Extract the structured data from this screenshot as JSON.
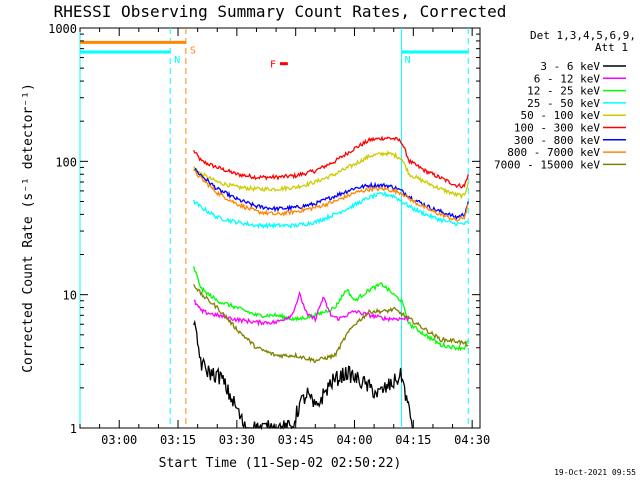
{
  "chart_data": {
    "type": "line",
    "title": "RHESSI Observing Summary Count Rates, Corrected",
    "xlabel": "Start Time (11-Sep-02 02:50:22)",
    "ylabel": "Corrected Count Rate (s⁻¹ detector⁻¹)",
    "timestamp": "19-Oct-2021 09:55",
    "x_axis": {
      "range_minutes_after_0300": [
        -10,
        92
      ],
      "ticks": [
        {
          "label": "03:00",
          "minutes": 0
        },
        {
          "label": "03:15",
          "minutes": 15
        },
        {
          "label": "03:30",
          "minutes": 30
        },
        {
          "label": "03:45",
          "minutes": 45
        },
        {
          "label": "04:00",
          "minutes": 60
        },
        {
          "label": "04:15",
          "minutes": 75
        },
        {
          "label": "04:30",
          "minutes": 90
        }
      ]
    },
    "y_axis": {
      "scale": "log",
      "ylim": [
        1,
        1000
      ],
      "ticks": [
        {
          "label": "1",
          "value": 1
        },
        {
          "label": "10",
          "value": 10
        },
        {
          "label": "100",
          "value": 100
        },
        {
          "label": "1000",
          "value": 1000
        }
      ]
    },
    "legend": {
      "placement": "top-right",
      "header": [
        "Det 1,3,4,5,6,9,",
        "Att 1"
      ],
      "entries": [
        {
          "label": "3 - 6 keV",
          "color": "#000000"
        },
        {
          "label": "6 - 12 keV",
          "color": "#ff00ff"
        },
        {
          "label": "12 - 25 keV",
          "color": "#00ff00"
        },
        {
          "label": "25 - 50 keV",
          "color": "#00ffff"
        },
        {
          "label": "50 - 100 keV",
          "color": "#cccc00"
        },
        {
          "label": "100 - 300 keV",
          "color": "#ff0000"
        },
        {
          "label": "300 - 800 keV",
          "color": "#0000ff"
        },
        {
          "label": "800 - 7000 keV",
          "color": "#ff8800"
        },
        {
          "label": "7000 - 15000 keV",
          "color": "#808000"
        }
      ]
    },
    "state_bars": [
      {
        "label": "S",
        "color": "#ff8800",
        "start": -10,
        "end": 17,
        "value": 780
      },
      {
        "label": "N",
        "color": "#00ffff",
        "start": -10,
        "end": 13,
        "value": 660
      },
      {
        "label": "N",
        "color": "#00ffff",
        "start": 72,
        "end": 89,
        "value": 660
      },
      {
        "label": "F",
        "color": "#ff0000",
        "start": 41,
        "end": 43,
        "value": 540
      }
    ],
    "vertical_markers": [
      {
        "color": "#00ffff",
        "minutes": -10,
        "style": "solid"
      },
      {
        "color": "#00ffff",
        "minutes": 13,
        "style": "dashed"
      },
      {
        "color": "#ff8800",
        "minutes": 17,
        "style": "dashed"
      },
      {
        "color": "#00ffff",
        "minutes": 72,
        "style": "solid"
      },
      {
        "color": "#00ffff",
        "minutes": 89,
        "style": "dashed"
      }
    ],
    "series": [
      {
        "name": "100 - 300 keV",
        "color": "#ff0000",
        "points": [
          [
            19,
            120
          ],
          [
            21,
            100
          ],
          [
            25,
            90
          ],
          [
            30,
            80
          ],
          [
            35,
            76
          ],
          [
            40,
            76
          ],
          [
            45,
            78
          ],
          [
            50,
            85
          ],
          [
            55,
            100
          ],
          [
            60,
            125
          ],
          [
            64,
            145
          ],
          [
            68,
            150
          ],
          [
            70,
            148
          ],
          [
            71,
            145
          ],
          [
            72,
            140
          ],
          [
            74,
            100
          ],
          [
            78,
            85
          ],
          [
            82,
            75
          ],
          [
            86,
            66
          ],
          [
            88,
            65
          ],
          [
            89,
            80
          ]
        ]
      },
      {
        "name": "50 - 100 keV",
        "color": "#cccc00",
        "points": [
          [
            19,
            90
          ],
          [
            21,
            80
          ],
          [
            25,
            70
          ],
          [
            30,
            64
          ],
          [
            35,
            62
          ],
          [
            40,
            62
          ],
          [
            45,
            64
          ],
          [
            50,
            70
          ],
          [
            55,
            80
          ],
          [
            60,
            95
          ],
          [
            64,
            110
          ],
          [
            68,
            115
          ],
          [
            70,
            112
          ],
          [
            72,
            105
          ],
          [
            74,
            80
          ],
          [
            78,
            70
          ],
          [
            82,
            62
          ],
          [
            86,
            56
          ],
          [
            88,
            55
          ],
          [
            89,
            70
          ]
        ]
      },
      {
        "name": "300 - 800 keV",
        "color": "#0000ff",
        "points": [
          [
            19,
            88
          ],
          [
            21,
            78
          ],
          [
            25,
            62
          ],
          [
            30,
            52
          ],
          [
            35,
            46
          ],
          [
            40,
            44
          ],
          [
            45,
            45
          ],
          [
            50,
            48
          ],
          [
            55,
            55
          ],
          [
            60,
            63
          ],
          [
            64,
            66
          ],
          [
            68,
            66
          ],
          [
            70,
            64
          ],
          [
            72,
            60
          ],
          [
            75,
            52
          ],
          [
            80,
            44
          ],
          [
            84,
            40
          ],
          [
            86,
            38
          ],
          [
            88,
            40
          ],
          [
            89,
            50
          ]
        ]
      },
      {
        "name": "800 - 7000 keV",
        "color": "#ff8800",
        "points": [
          [
            19,
            85
          ],
          [
            21,
            74
          ],
          [
            25,
            58
          ],
          [
            30,
            48
          ],
          [
            35,
            42
          ],
          [
            40,
            40
          ],
          [
            45,
            42
          ],
          [
            50,
            45
          ],
          [
            55,
            50
          ],
          [
            60,
            58
          ],
          [
            64,
            62
          ],
          [
            68,
            62
          ],
          [
            70,
            60
          ],
          [
            72,
            58
          ],
          [
            75,
            50
          ],
          [
            80,
            42
          ],
          [
            84,
            38
          ],
          [
            86,
            36
          ],
          [
            88,
            38
          ],
          [
            89,
            48
          ]
        ]
      },
      {
        "name": "25 - 50 keV",
        "color": "#00ffff",
        "points": [
          [
            19,
            50
          ],
          [
            21,
            45
          ],
          [
            25,
            38
          ],
          [
            30,
            35
          ],
          [
            35,
            33
          ],
          [
            40,
            33
          ],
          [
            45,
            33
          ],
          [
            50,
            35
          ],
          [
            55,
            40
          ],
          [
            60,
            47
          ],
          [
            64,
            54
          ],
          [
            67,
            57
          ],
          [
            70,
            55
          ],
          [
            72,
            50
          ],
          [
            75,
            44
          ],
          [
            80,
            38
          ],
          [
            84,
            35
          ],
          [
            86,
            34
          ],
          [
            88,
            34
          ],
          [
            89,
            35
          ]
        ]
      },
      {
        "name": "12 - 25 keV",
        "color": "#00ff00",
        "points": [
          [
            19,
            16
          ],
          [
            21,
            11
          ],
          [
            25,
            9
          ],
          [
            30,
            8
          ],
          [
            35,
            7
          ],
          [
            40,
            7
          ],
          [
            45,
            6.5
          ],
          [
            50,
            7
          ],
          [
            55,
            8
          ],
          [
            58,
            11
          ],
          [
            60,
            9
          ],
          [
            64,
            11
          ],
          [
            67,
            12
          ],
          [
            70,
            10
          ],
          [
            72,
            9
          ],
          [
            74,
            6
          ],
          [
            78,
            5
          ],
          [
            82,
            4.2
          ],
          [
            86,
            4
          ],
          [
            88,
            4
          ],
          [
            89,
            4.5
          ]
        ]
      },
      {
        "name": "6 - 12 keV",
        "color": "#ff00ff",
        "points": [
          [
            19,
            9
          ],
          [
            21,
            7.5
          ],
          [
            25,
            7
          ],
          [
            30,
            6.5
          ],
          [
            35,
            6.2
          ],
          [
            40,
            6.2
          ],
          [
            44,
            7
          ],
          [
            46,
            10
          ],
          [
            48,
            7
          ],
          [
            50,
            6.6
          ],
          [
            52,
            9.5
          ],
          [
            54,
            7
          ],
          [
            56,
            6.6
          ],
          [
            60,
            7.5
          ],
          [
            64,
            7
          ],
          [
            68,
            6.6
          ],
          [
            72,
            6.6
          ],
          [
            74,
            6.6
          ]
        ]
      },
      {
        "name": "7000 - 15000 keV",
        "color": "#808000",
        "points": [
          [
            19,
            12
          ],
          [
            21,
            10
          ],
          [
            25,
            8
          ],
          [
            30,
            5.5
          ],
          [
            35,
            4
          ],
          [
            40,
            3.5
          ],
          [
            45,
            3.5
          ],
          [
            50,
            3.2
          ],
          [
            55,
            3.5
          ],
          [
            58,
            5
          ],
          [
            60,
            6
          ],
          [
            64,
            7.5
          ],
          [
            68,
            7.5
          ],
          [
            70,
            7.8
          ],
          [
            72,
            7.2
          ],
          [
            75,
            6.3
          ],
          [
            78,
            5.5
          ],
          [
            82,
            4.6
          ],
          [
            86,
            4.5
          ],
          [
            88,
            4.3
          ],
          [
            89,
            4.2
          ]
        ]
      },
      {
        "name": "3 - 6 keV",
        "color": "#000000",
        "points": [
          [
            19,
            6
          ],
          [
            21,
            3
          ],
          [
            23,
            2.6
          ],
          [
            26,
            2.4
          ],
          [
            28,
            1.8
          ],
          [
            30,
            1.4
          ],
          [
            32,
            1
          ],
          [
            36,
            1
          ],
          [
            40,
            1
          ],
          [
            44,
            1
          ],
          [
            46,
            1.5
          ],
          [
            48,
            1.8
          ],
          [
            50,
            1.4
          ],
          [
            54,
            2.2
          ],
          [
            58,
            2.6
          ],
          [
            62,
            2.2
          ],
          [
            66,
            1.8
          ],
          [
            70,
            2.2
          ],
          [
            72,
            2.5
          ],
          [
            74,
            1.3
          ],
          [
            75,
            1
          ]
        ]
      }
    ]
  }
}
